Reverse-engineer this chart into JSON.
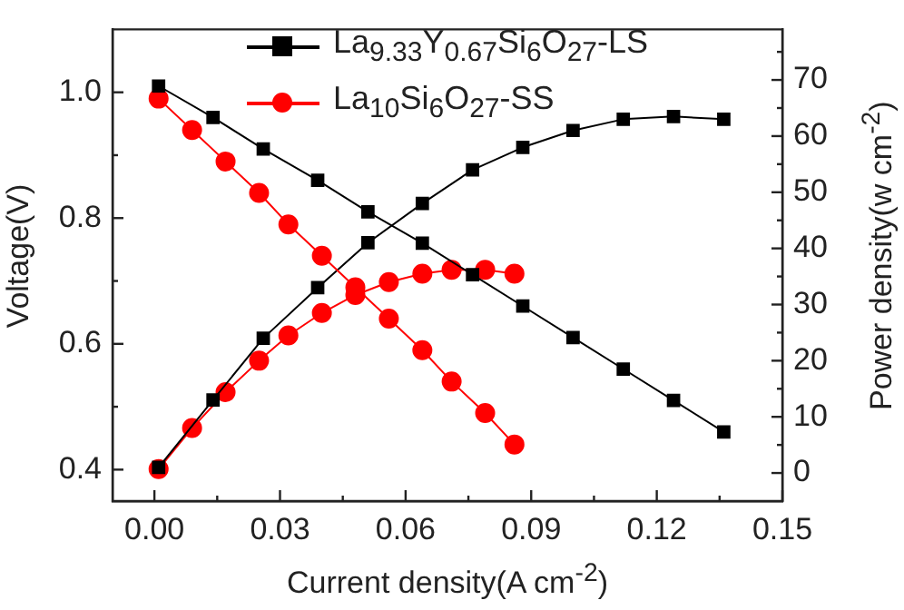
{
  "chart_data": {
    "type": "line",
    "xlabel": "Current density(A cm$^{-2}$)",
    "ylabel": "Voltage(V)",
    "y2label": "Power density(w cm$^{-2}$)",
    "legend": "top",
    "xlim": [
      -0.01,
      0.15
    ],
    "ylim": [
      0.35,
      1.1
    ],
    "y2lim": [
      -5,
      79
    ],
    "xticks": [
      {
        "value": 0,
        "label": "0.00"
      },
      {
        "value": 0.015,
        "label": null
      },
      {
        "value": 0.03,
        "label": "0.03"
      },
      {
        "value": 0.045,
        "label": null
      },
      {
        "value": 0.06,
        "label": "0.06"
      },
      {
        "value": 0.075,
        "label": null
      },
      {
        "value": 0.09,
        "label": "0.09"
      },
      {
        "value": 0.105,
        "label": null
      },
      {
        "value": 0.12,
        "label": "0.12"
      },
      {
        "value": 0.135,
        "label": null
      },
      {
        "value": 0.15,
        "label": "0.15"
      }
    ],
    "yticks": [
      {
        "value": 0.4,
        "label": "0.4"
      },
      {
        "value": 0.5,
        "label": null
      },
      {
        "value": 0.6,
        "label": "0.6"
      },
      {
        "value": 0.7,
        "label": null
      },
      {
        "value": 0.8,
        "label": "0.8"
      },
      {
        "value": 0.9,
        "label": null
      },
      {
        "value": 1.0,
        "label": "1.0"
      }
    ],
    "y2ticks": [
      0,
      {
        "value": 5,
        "label": null
      },
      10,
      {
        "value": 15,
        "label": null
      },
      20,
      {
        "value": 25,
        "label": null
      },
      30,
      {
        "value": 35,
        "label": null
      },
      40,
      {
        "value": 45,
        "label": null
      },
      50,
      {
        "value": 55,
        "label": null
      },
      60,
      {
        "value": 65,
        "label": null
      },
      70,
      {
        "value": 75,
        "label": null
      }
    ],
    "series": [
      {
        "name": "La$_{9.33}$Y$_{0.67}$Si$_{6}$O$_{27}$-LS",
        "color": "#000000",
        "marker": "square",
        "x": [
          0.001,
          0.014,
          0.026,
          0.039,
          0.051,
          0.064,
          0.076,
          0.088,
          0.1,
          0.112,
          0.124,
          0.136
        ],
        "values": [
          1.01,
          0.96,
          0.91,
          0.86,
          0.81,
          0.76,
          0.71,
          0.66,
          0.61,
          0.56,
          0.51,
          0.46
        ]
      },
      {
        "name": "La$_{10}$Si$_{6}$O$_{27}$-SS",
        "color": "#ff0000",
        "marker": "circle",
        "x": [
          0.001,
          0.009,
          0.017,
          0.025,
          0.032,
          0.04,
          0.048,
          0.056,
          0.064,
          0.071,
          0.079,
          0.086
        ],
        "values": [
          0.99,
          0.94,
          0.89,
          0.84,
          0.79,
          0.74,
          0.69,
          0.64,
          0.59,
          0.54,
          0.49,
          0.44
        ]
      },
      {
        "color": "#000000",
        "marker": "square",
        "axis": "y2",
        "x": [
          0.001,
          0.014,
          0.026,
          0.039,
          0.051,
          0.064,
          0.076,
          0.088,
          0.1,
          0.112,
          0.124,
          0.136
        ],
        "values": [
          1,
          13,
          24,
          33,
          41,
          48,
          54,
          58,
          61,
          63,
          63.5,
          63
        ]
      },
      {
        "color": "#ff0000",
        "marker": "circle",
        "axis": "y2",
        "x": [
          0.001,
          0.009,
          0.017,
          0.025,
          0.032,
          0.04,
          0.048,
          0.056,
          0.064,
          0.071,
          0.079,
          0.086
        ],
        "values": [
          0.7,
          8,
          14.4,
          20,
          24.5,
          28.5,
          31.7,
          34,
          35.5,
          36.2,
          36.2,
          35.5
        ]
      }
    ]
  }
}
